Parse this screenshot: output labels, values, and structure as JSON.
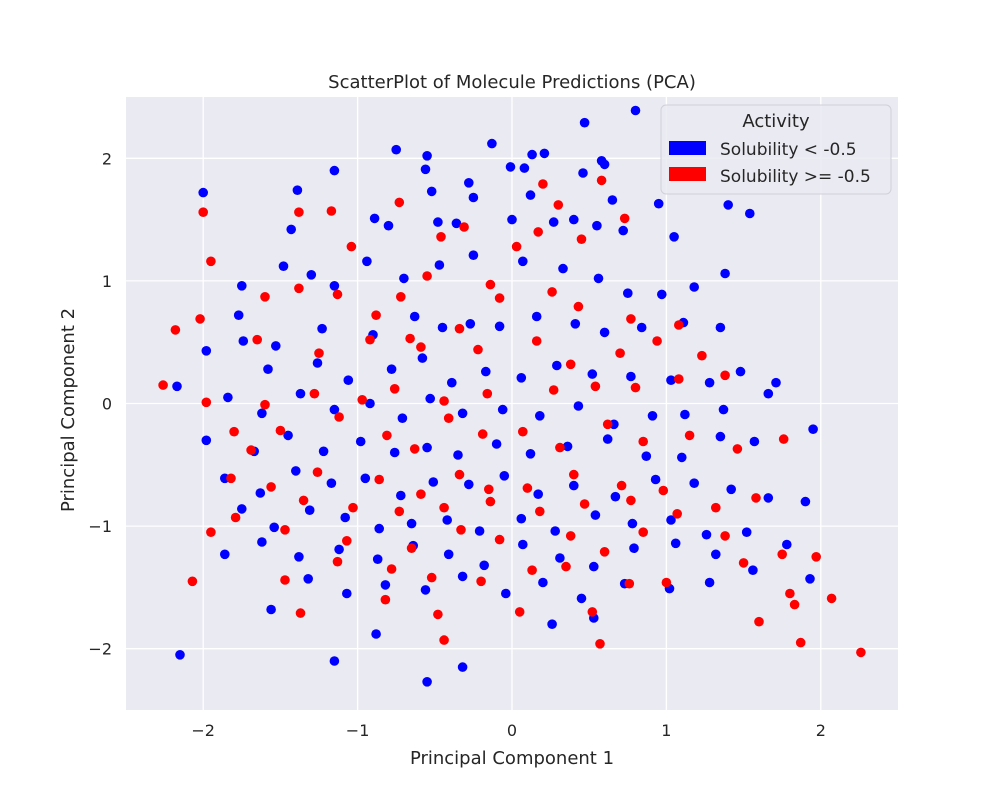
{
  "chart_data": {
    "type": "scatter",
    "title": "ScatterPlot of Molecule Predictions (PCA)",
    "xlabel": "Principal Component 1",
    "ylabel": "Principal Component 2",
    "xlim": [
      -2.5,
      2.5
    ],
    "ylim": [
      -2.5,
      2.5
    ],
    "xticks": [
      -2,
      -1,
      0,
      1,
      2
    ],
    "yticks": [
      -2,
      -1,
      0,
      1,
      2
    ],
    "xtick_labels": [
      "−2",
      "−1",
      "0",
      "1",
      "2"
    ],
    "ytick_labels": [
      "−2",
      "−1",
      "0",
      "1",
      "2"
    ],
    "grid": true,
    "legend": {
      "title": "Activity",
      "placement": "top-right"
    },
    "background_color": "#eaeaf2",
    "series": [
      {
        "name": "Solubility < -0.5",
        "color": "#0000ff",
        "points": [
          [
            0.47,
            2.29
          ],
          [
            0.8,
            2.39
          ],
          [
            -0.75,
            2.07
          ],
          [
            -0.55,
            2.02
          ],
          [
            -0.13,
            2.12
          ],
          [
            0.13,
            2.03
          ],
          [
            0.21,
            2.04
          ],
          [
            0.58,
            1.98
          ],
          [
            0.6,
            1.95
          ],
          [
            -1.15,
            1.9
          ],
          [
            -0.56,
            1.91
          ],
          [
            -0.01,
            1.93
          ],
          [
            0.08,
            1.92
          ],
          [
            0.46,
            1.88
          ],
          [
            -2.0,
            1.72
          ],
          [
            -1.39,
            1.74
          ],
          [
            -0.28,
            1.8
          ],
          [
            -0.52,
            1.73
          ],
          [
            -0.25,
            1.68
          ],
          [
            0.12,
            1.7
          ],
          [
            0.65,
            1.66
          ],
          [
            0.95,
            1.63
          ],
          [
            1.4,
            1.62
          ],
          [
            -1.43,
            1.42
          ],
          [
            -0.89,
            1.51
          ],
          [
            -0.8,
            1.45
          ],
          [
            -0.48,
            1.48
          ],
          [
            -0.36,
            1.47
          ],
          [
            0.0,
            1.5
          ],
          [
            0.27,
            1.48
          ],
          [
            0.4,
            1.5
          ],
          [
            0.55,
            1.45
          ],
          [
            0.72,
            1.41
          ],
          [
            1.05,
            1.36
          ],
          [
            1.54,
            1.55
          ],
          [
            -1.75,
            0.96
          ],
          [
            -1.48,
            1.12
          ],
          [
            -1.3,
            1.05
          ],
          [
            -1.15,
            0.96
          ],
          [
            -0.94,
            1.16
          ],
          [
            -0.7,
            1.02
          ],
          [
            -0.47,
            1.13
          ],
          [
            -0.25,
            1.21
          ],
          [
            0.07,
            1.16
          ],
          [
            0.33,
            1.1
          ],
          [
            0.56,
            1.02
          ],
          [
            0.75,
            0.9
          ],
          [
            0.97,
            0.89
          ],
          [
            1.18,
            0.95
          ],
          [
            1.38,
            1.06
          ],
          [
            -1.77,
            0.72
          ],
          [
            -1.53,
            0.47
          ],
          [
            -1.23,
            0.61
          ],
          [
            -0.9,
            0.56
          ],
          [
            -0.63,
            0.71
          ],
          [
            -0.45,
            0.62
          ],
          [
            -0.27,
            0.65
          ],
          [
            -0.08,
            0.63
          ],
          [
            0.16,
            0.71
          ],
          [
            0.41,
            0.65
          ],
          [
            0.6,
            0.58
          ],
          [
            0.84,
            0.62
          ],
          [
            1.11,
            0.66
          ],
          [
            1.35,
            0.62
          ],
          [
            -1.98,
            0.43
          ],
          [
            -1.74,
            0.51
          ],
          [
            -1.58,
            0.28
          ],
          [
            -1.26,
            0.33
          ],
          [
            -1.06,
            0.19
          ],
          [
            -0.78,
            0.28
          ],
          [
            -0.58,
            0.37
          ],
          [
            -0.39,
            0.17
          ],
          [
            -0.17,
            0.26
          ],
          [
            0.06,
            0.21
          ],
          [
            0.29,
            0.31
          ],
          [
            0.52,
            0.24
          ],
          [
            0.77,
            0.22
          ],
          [
            1.03,
            0.19
          ],
          [
            1.28,
            0.17
          ],
          [
            1.48,
            0.26
          ],
          [
            1.71,
            0.17
          ],
          [
            -2.17,
            0.14
          ],
          [
            -1.84,
            0.05
          ],
          [
            -1.62,
            -0.08
          ],
          [
            -1.37,
            0.08
          ],
          [
            -1.15,
            -0.05
          ],
          [
            -0.92,
            0.0
          ],
          [
            -0.71,
            -0.12
          ],
          [
            -0.53,
            0.04
          ],
          [
            -0.32,
            -0.08
          ],
          [
            -0.06,
            -0.05
          ],
          [
            0.18,
            -0.1
          ],
          [
            0.43,
            -0.02
          ],
          [
            0.66,
            -0.17
          ],
          [
            0.91,
            -0.1
          ],
          [
            1.12,
            -0.09
          ],
          [
            1.37,
            -0.05
          ],
          [
            1.66,
            0.08
          ],
          [
            -1.98,
            -0.3
          ],
          [
            -1.67,
            -0.39
          ],
          [
            -1.45,
            -0.26
          ],
          [
            -1.22,
            -0.39
          ],
          [
            -0.98,
            -0.31
          ],
          [
            -0.76,
            -0.4
          ],
          [
            -0.55,
            -0.36
          ],
          [
            -0.35,
            -0.42
          ],
          [
            -0.1,
            -0.33
          ],
          [
            0.12,
            -0.41
          ],
          [
            0.36,
            -0.35
          ],
          [
            0.62,
            -0.29
          ],
          [
            0.87,
            -0.43
          ],
          [
            1.1,
            -0.44
          ],
          [
            1.35,
            -0.27
          ],
          [
            1.57,
            -0.31
          ],
          [
            1.95,
            -0.21
          ],
          [
            -1.86,
            -0.61
          ],
          [
            -1.63,
            -0.73
          ],
          [
            -1.4,
            -0.55
          ],
          [
            -1.17,
            -0.65
          ],
          [
            -0.95,
            -0.61
          ],
          [
            -0.72,
            -0.75
          ],
          [
            -0.51,
            -0.64
          ],
          [
            -0.28,
            -0.66
          ],
          [
            -0.05,
            -0.59
          ],
          [
            0.17,
            -0.74
          ],
          [
            0.4,
            -0.67
          ],
          [
            0.67,
            -0.76
          ],
          [
            0.93,
            -0.62
          ],
          [
            1.18,
            -0.65
          ],
          [
            1.42,
            -0.7
          ],
          [
            1.66,
            -0.77
          ],
          [
            1.9,
            -0.8
          ],
          [
            -1.75,
            -0.86
          ],
          [
            -1.54,
            -1.01
          ],
          [
            -1.31,
            -0.87
          ],
          [
            -1.08,
            -0.93
          ],
          [
            -0.86,
            -1.02
          ],
          [
            -0.65,
            -0.98
          ],
          [
            -0.42,
            -0.95
          ],
          [
            -0.21,
            -1.04
          ],
          [
            0.06,
            -0.94
          ],
          [
            0.28,
            -1.04
          ],
          [
            0.54,
            -0.91
          ],
          [
            0.78,
            -0.98
          ],
          [
            1.03,
            -0.95
          ],
          [
            1.26,
            -1.07
          ],
          [
            1.52,
            -1.05
          ],
          [
            -1.86,
            -1.23
          ],
          [
            -1.62,
            -1.13
          ],
          [
            -1.38,
            -1.25
          ],
          [
            -1.12,
            -1.19
          ],
          [
            -0.87,
            -1.27
          ],
          [
            -0.64,
            -1.16
          ],
          [
            -0.41,
            -1.23
          ],
          [
            -0.18,
            -1.32
          ],
          [
            0.07,
            -1.15
          ],
          [
            0.31,
            -1.26
          ],
          [
            0.53,
            -1.33
          ],
          [
            0.79,
            -1.18
          ],
          [
            1.06,
            -1.14
          ],
          [
            1.32,
            -1.23
          ],
          [
            1.56,
            -1.36
          ],
          [
            1.78,
            -1.15
          ],
          [
            -1.56,
            -1.68
          ],
          [
            -1.32,
            -1.43
          ],
          [
            -1.07,
            -1.55
          ],
          [
            -0.82,
            -1.48
          ],
          [
            -0.56,
            -1.52
          ],
          [
            -0.32,
            -1.41
          ],
          [
            -0.04,
            -1.55
          ],
          [
            0.2,
            -1.46
          ],
          [
            0.45,
            -1.59
          ],
          [
            0.73,
            -1.47
          ],
          [
            1.02,
            -1.51
          ],
          [
            1.28,
            -1.46
          ],
          [
            1.93,
            -1.43
          ],
          [
            -2.15,
            -2.05
          ],
          [
            -1.15,
            -2.1
          ],
          [
            -0.88,
            -1.88
          ],
          [
            -0.55,
            -2.27
          ],
          [
            -0.32,
            -2.15
          ],
          [
            0.26,
            -1.8
          ],
          [
            0.53,
            -1.75
          ]
        ]
      },
      {
        "name": "Solubility >= -0.5",
        "color": "#ff0000",
        "points": [
          [
            0.58,
            1.82
          ],
          [
            0.2,
            1.79
          ],
          [
            -2.0,
            1.56
          ],
          [
            -1.38,
            1.56
          ],
          [
            -1.17,
            1.57
          ],
          [
            -0.73,
            1.64
          ],
          [
            0.3,
            1.62
          ],
          [
            0.73,
            1.51
          ],
          [
            -0.31,
            1.44
          ],
          [
            0.17,
            1.4
          ],
          [
            0.45,
            1.34
          ],
          [
            -1.04,
            1.28
          ],
          [
            -0.46,
            1.36
          ],
          [
            0.03,
            1.28
          ],
          [
            -1.95,
            1.16
          ],
          [
            -1.38,
            0.94
          ],
          [
            -1.13,
            0.89
          ],
          [
            -0.72,
            0.87
          ],
          [
            -0.55,
            1.04
          ],
          [
            -0.14,
            0.97
          ],
          [
            0.26,
            0.91
          ],
          [
            -1.6,
            0.87
          ],
          [
            -0.88,
            0.72
          ],
          [
            -0.66,
            0.53
          ],
          [
            -0.34,
            0.61
          ],
          [
            -0.08,
            0.86
          ],
          [
            0.43,
            0.79
          ],
          [
            0.77,
            0.69
          ],
          [
            1.08,
            0.64
          ],
          [
            -2.18,
            0.6
          ],
          [
            -2.02,
            0.69
          ],
          [
            -1.65,
            0.52
          ],
          [
            -1.25,
            0.41
          ],
          [
            -0.92,
            0.52
          ],
          [
            -0.59,
            0.46
          ],
          [
            -0.22,
            0.44
          ],
          [
            0.16,
            0.51
          ],
          [
            0.38,
            0.32
          ],
          [
            0.7,
            0.41
          ],
          [
            0.94,
            0.51
          ],
          [
            1.23,
            0.39
          ],
          [
            -2.26,
            0.15
          ],
          [
            -1.98,
            0.01
          ],
          [
            -1.6,
            -0.01
          ],
          [
            -1.28,
            0.08
          ],
          [
            -0.97,
            0.03
          ],
          [
            -0.76,
            0.12
          ],
          [
            -0.44,
            0.02
          ],
          [
            -0.16,
            0.08
          ],
          [
            0.27,
            0.11
          ],
          [
            0.54,
            0.14
          ],
          [
            0.8,
            0.13
          ],
          [
            1.08,
            0.2
          ],
          [
            1.38,
            0.23
          ],
          [
            -1.8,
            -0.23
          ],
          [
            -1.69,
            -0.38
          ],
          [
            -1.5,
            -0.22
          ],
          [
            -1.12,
            -0.11
          ],
          [
            -0.81,
            -0.26
          ],
          [
            -0.63,
            -0.37
          ],
          [
            -0.41,
            -0.12
          ],
          [
            -0.19,
            -0.25
          ],
          [
            0.07,
            -0.23
          ],
          [
            0.31,
            -0.36
          ],
          [
            0.62,
            -0.17
          ],
          [
            0.85,
            -0.31
          ],
          [
            1.15,
            -0.26
          ],
          [
            1.46,
            -0.37
          ],
          [
            1.76,
            -0.29
          ],
          [
            -1.82,
            -0.61
          ],
          [
            -1.56,
            -0.68
          ],
          [
            -1.26,
            -0.56
          ],
          [
            -0.86,
            -0.62
          ],
          [
            -0.59,
            -0.74
          ],
          [
            -0.34,
            -0.58
          ],
          [
            -0.15,
            -0.7
          ],
          [
            0.1,
            -0.69
          ],
          [
            0.4,
            -0.58
          ],
          [
            0.71,
            -0.67
          ],
          [
            0.98,
            -0.71
          ],
          [
            1.32,
            -0.85
          ],
          [
            1.58,
            -0.77
          ],
          [
            -1.79,
            -0.93
          ],
          [
            -1.35,
            -0.79
          ],
          [
            -1.03,
            -0.85
          ],
          [
            -0.73,
            -0.88
          ],
          [
            -0.44,
            -0.85
          ],
          [
            -0.14,
            -0.8
          ],
          [
            0.18,
            -0.88
          ],
          [
            0.47,
            -0.82
          ],
          [
            0.77,
            -0.79
          ],
          [
            1.07,
            -0.9
          ],
          [
            1.38,
            -1.08
          ],
          [
            -1.95,
            -1.05
          ],
          [
            -1.47,
            -1.03
          ],
          [
            -1.07,
            -1.12
          ],
          [
            -0.65,
            -1.18
          ],
          [
            -0.33,
            -1.03
          ],
          [
            -0.08,
            -1.11
          ],
          [
            0.38,
            -1.08
          ],
          [
            0.6,
            -1.21
          ],
          [
            0.85,
            -1.05
          ],
          [
            1.5,
            -1.3
          ],
          [
            1.75,
            -1.23
          ],
          [
            1.97,
            -1.25
          ],
          [
            -2.07,
            -1.45
          ],
          [
            -1.47,
            -1.44
          ],
          [
            -1.13,
            -1.29
          ],
          [
            -0.78,
            -1.35
          ],
          [
            -0.52,
            -1.42
          ],
          [
            -0.2,
            -1.45
          ],
          [
            0.13,
            -1.36
          ],
          [
            0.35,
            -1.33
          ],
          [
            0.76,
            -1.47
          ],
          [
            1.0,
            -1.46
          ],
          [
            1.8,
            -1.55
          ],
          [
            2.07,
            -1.59
          ],
          [
            -1.37,
            -1.71
          ],
          [
            -0.82,
            -1.6
          ],
          [
            -0.48,
            -1.72
          ],
          [
            0.05,
            -1.7
          ],
          [
            0.52,
            -1.7
          ],
          [
            1.6,
            -1.78
          ],
          [
            1.83,
            -1.64
          ],
          [
            -0.44,
            -1.93
          ],
          [
            0.57,
            -1.96
          ],
          [
            1.87,
            -1.95
          ],
          [
            2.26,
            -2.03
          ]
        ]
      }
    ]
  }
}
